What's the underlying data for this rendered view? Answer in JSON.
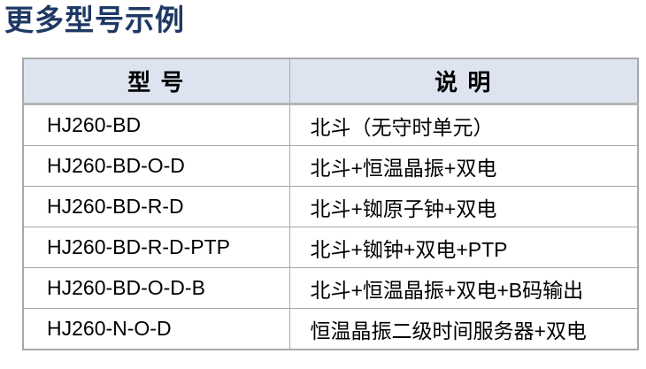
{
  "page": {
    "title": "更多型号示例"
  },
  "table": {
    "columns": [
      {
        "label": "型 号"
      },
      {
        "label": "说 明"
      }
    ],
    "rows": [
      {
        "model": "HJ260-BD",
        "description": "北斗（无守时单元）"
      },
      {
        "model": "HJ260-BD-O-D",
        "description": "北斗+恒温晶振+双电"
      },
      {
        "model": "HJ260-BD-R-D",
        "description": "北斗+铷原子钟+双电"
      },
      {
        "model": "HJ260-BD-R-D-PTP",
        "description": "北斗+铷钟+双电+PTP"
      },
      {
        "model": "HJ260-BD-O-D-B",
        "description": "北斗+恒温晶振+双电+B码输出"
      },
      {
        "model": "HJ260-N-O-D",
        "description": "恒温晶振二级时间服务器+双电"
      }
    ]
  },
  "colors": {
    "title_text": "#1f3864",
    "header_background": "#dde4f0",
    "table_border": "#a8a8a8",
    "body_text": "#000000",
    "page_background": "#ffffff"
  }
}
